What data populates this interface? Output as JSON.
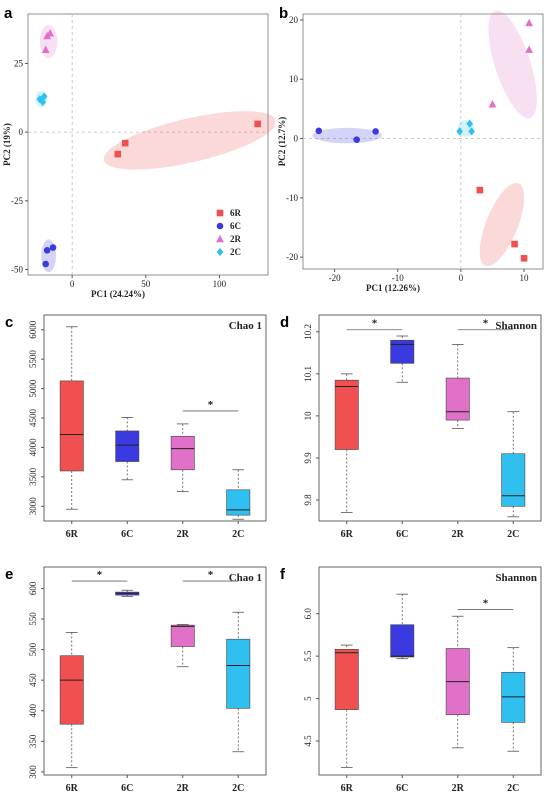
{
  "colors": {
    "6R": "#f05050",
    "6C": "#3a3ae0",
    "2R": "#e070c8",
    "2C": "#30c0f0"
  },
  "chart_data": [
    {
      "id": "a",
      "type": "scatter",
      "panel_label": "a",
      "xlabel": "PC1 (24.24%)",
      "ylabel": "PC2 (19%)",
      "xlim": [
        -30,
        133
      ],
      "ylim": [
        -52,
        43
      ],
      "xticks": [
        0,
        50,
        100
      ],
      "yticks": [
        -50,
        -25,
        0,
        25
      ],
      "legend": {
        "position": "bottom-right",
        "entries": [
          "6R",
          "6C",
          "2R",
          "2C"
        ]
      },
      "series": [
        {
          "name": "6R",
          "marker": "square",
          "points": [
            [
              31,
              -8
            ],
            [
              36,
              -4
            ],
            [
              126,
              3
            ]
          ],
          "ellipse": {
            "cx": 80,
            "cy": -3,
            "rx": 60,
            "ry": 8,
            "angle": 13
          }
        },
        {
          "name": "6C",
          "marker": "circle",
          "points": [
            [
              -18,
              -48
            ],
            [
              -17,
              -43
            ],
            [
              -13,
              -42
            ]
          ],
          "ellipse": {
            "cx": -16,
            "cy": -45,
            "rx": 5,
            "ry": 6,
            "angle": 0
          }
        },
        {
          "name": "2R",
          "marker": "triangle",
          "points": [
            [
              -18,
              30
            ],
            [
              -17,
              35
            ],
            [
              -15,
              36
            ]
          ],
          "ellipse": {
            "cx": -16,
            "cy": 33,
            "rx": 6,
            "ry": 6,
            "angle": 0
          }
        },
        {
          "name": "2C",
          "marker": "diamond",
          "points": [
            [
              -22,
              12
            ],
            [
              -20,
              11
            ],
            [
              -19,
              13
            ]
          ],
          "ellipse": {
            "cx": -21,
            "cy": 12,
            "rx": 4,
            "ry": 3,
            "angle": 0
          }
        }
      ]
    },
    {
      "id": "b",
      "type": "scatter",
      "panel_label": "b",
      "xlabel": "PC1   (12.26%)",
      "ylabel": "PC2 (12.7%)",
      "xlim": [
        -25,
        13
      ],
      "ylim": [
        -22,
        21
      ],
      "xticks": [
        -20,
        -10,
        0,
        10
      ],
      "yticks": [
        -20,
        -10,
        0,
        10,
        20
      ],
      "series": [
        {
          "name": "6R",
          "marker": "square",
          "points": [
            [
              3,
              -8.7
            ],
            [
              8.5,
              -17.8
            ],
            [
              10,
              -20.2
            ]
          ],
          "ellipse": {
            "cx": 6.5,
            "cy": -14.5,
            "rx": 2.5,
            "ry": 7.5,
            "angle": -22
          }
        },
        {
          "name": "6C",
          "marker": "circle",
          "points": [
            [
              -22.5,
              1.3
            ],
            [
              -16.5,
              -0.2
            ],
            [
              -13.5,
              1.2
            ]
          ],
          "ellipse": {
            "cx": -18,
            "cy": 0.5,
            "rx": 5.5,
            "ry": 1.3,
            "angle": 0
          }
        },
        {
          "name": "2R",
          "marker": "triangle",
          "points": [
            [
              5,
              5.8
            ],
            [
              10.8,
              15
            ],
            [
              10.8,
              19.5
            ]
          ],
          "ellipse": {
            "cx": 8.2,
            "cy": 12.5,
            "rx": 2.8,
            "ry": 9.5,
            "angle": 18
          }
        },
        {
          "name": "2C",
          "marker": "diamond",
          "points": [
            [
              -0.2,
              1.2
            ],
            [
              1.4,
              2.5
            ],
            [
              1.7,
              1.2
            ]
          ],
          "ellipse": {
            "cx": 0.8,
            "cy": 1.7,
            "rx": 1.3,
            "ry": 1.4,
            "angle": 0
          }
        }
      ]
    },
    {
      "id": "c",
      "type": "box",
      "panel_label": "c",
      "title": "Chao 1",
      "ylim": [
        2750,
        6250
      ],
      "yticks": [
        3000,
        3500,
        4000,
        4500,
        5000,
        5500,
        6000
      ],
      "categories": [
        "6R",
        "6C",
        "2R",
        "2C"
      ],
      "boxes": [
        {
          "min": 2950,
          "q1": 3600,
          "median": 4220,
          "q3": 5130,
          "max": 6050
        },
        {
          "min": 3450,
          "q1": 3760,
          "median": 4040,
          "q3": 4280,
          "max": 4510
        },
        {
          "min": 3250,
          "q1": 3620,
          "median": 3980,
          "q3": 4190,
          "max": 4400
        },
        {
          "min": 2780,
          "q1": 2850,
          "median": 2940,
          "q3": 3280,
          "max": 3620
        }
      ],
      "significance": [
        {
          "from": 2,
          "to": 3,
          "y": 4620,
          "label": "*"
        }
      ]
    },
    {
      "id": "d",
      "type": "box",
      "panel_label": "d",
      "title": "Shannon",
      "ylim": [
        9.75,
        10.24
      ],
      "yticks": [
        9.8,
        9.9,
        10.0,
        10.1,
        10.2
      ],
      "categories": [
        "6R",
        "6C",
        "2R",
        "2C"
      ],
      "boxes": [
        {
          "min": 9.77,
          "q1": 9.92,
          "median": 10.07,
          "q3": 10.085,
          "max": 10.1
        },
        {
          "min": 10.08,
          "q1": 10.125,
          "median": 10.17,
          "q3": 10.18,
          "max": 10.19
        },
        {
          "min": 9.97,
          "q1": 9.99,
          "median": 10.01,
          "q3": 10.09,
          "max": 10.17
        },
        {
          "min": 9.76,
          "q1": 9.785,
          "median": 9.81,
          "q3": 9.91,
          "max": 10.01
        }
      ],
      "significance": [
        {
          "from": 0,
          "to": 1,
          "y": 10.205,
          "label": "*"
        },
        {
          "from": 2,
          "to": 3,
          "y": 10.205,
          "label": "*"
        }
      ]
    },
    {
      "id": "e",
      "type": "box",
      "panel_label": "e",
      "title": "Chao 1",
      "ylim": [
        295,
        635
      ],
      "yticks": [
        300,
        350,
        400,
        450,
        500,
        550,
        600
      ],
      "categories": [
        "6R",
        "6C",
        "2R",
        "2C"
      ],
      "boxes": [
        {
          "min": 307,
          "q1": 378,
          "median": 450,
          "q3": 490,
          "max": 528
        },
        {
          "min": 587,
          "q1": 589,
          "median": 592,
          "q3": 594,
          "max": 597
        },
        {
          "min": 472,
          "q1": 505,
          "median": 538,
          "q3": 540,
          "max": 541
        },
        {
          "min": 333,
          "q1": 404,
          "median": 474,
          "q3": 517,
          "max": 561
        }
      ],
      "significance": [
        {
          "from": 0,
          "to": 1,
          "y": 612,
          "label": "*"
        },
        {
          "from": 2,
          "to": 3,
          "y": 612,
          "label": "*"
        }
      ]
    },
    {
      "id": "f",
      "type": "box",
      "panel_label": "f",
      "title": "Shannon",
      "ylim": [
        4.1,
        6.55
      ],
      "yticks": [
        4.5,
        5.0,
        5.5,
        6.0
      ],
      "ytick_labels": [
        "4.5",
        "5",
        "5.5",
        "6.0"
      ],
      "categories": [
        "6R",
        "6C",
        "2R",
        "2C"
      ],
      "boxes": [
        {
          "min": 4.19,
          "q1": 4.87,
          "median": 5.54,
          "q3": 5.58,
          "max": 5.63
        },
        {
          "min": 5.47,
          "q1": 5.49,
          "median": 5.5,
          "q3": 5.87,
          "max": 6.23
        },
        {
          "min": 4.42,
          "q1": 4.81,
          "median": 5.2,
          "q3": 5.59,
          "max": 5.97
        },
        {
          "min": 4.38,
          "q1": 4.72,
          "median": 5.02,
          "q3": 5.31,
          "max": 5.6
        }
      ],
      "significance": [
        {
          "from": 2,
          "to": 3,
          "y": 6.05,
          "label": "*"
        }
      ]
    }
  ]
}
